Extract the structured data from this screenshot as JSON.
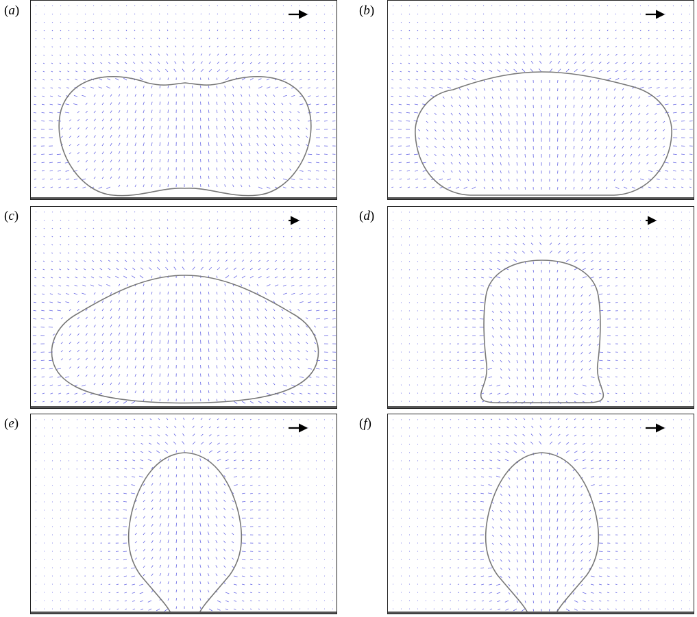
{
  "figure": {
    "panels": [
      {
        "id": "a",
        "label_open": "(",
        "label_letter": "a",
        "label_close": ")",
        "shape": "dumbbell",
        "reference_arrow": "long"
      },
      {
        "id": "b",
        "label_open": "(",
        "label_letter": "b",
        "label_close": ")",
        "shape": "pill",
        "reference_arrow": "long"
      },
      {
        "id": "c",
        "label_open": "(",
        "label_letter": "c",
        "label_close": ")",
        "shape": "flat-dome",
        "reference_arrow": "short"
      },
      {
        "id": "d",
        "label_open": "(",
        "label_letter": "d",
        "label_close": ")",
        "shape": "column",
        "reference_arrow": "short"
      },
      {
        "id": "e",
        "label_open": "(",
        "label_letter": "e",
        "label_close": ")",
        "shape": "pinching-drop",
        "reference_arrow": "long"
      },
      {
        "id": "f",
        "label_open": "(",
        "label_letter": "f",
        "label_close": ")",
        "shape": "pinching-drop",
        "reference_arrow": "long"
      }
    ],
    "colors": {
      "vector": "#4a4ae0",
      "interface": "#777777",
      "frame": "#222222",
      "wall": "#555555",
      "reference_arrow": "#000000"
    }
  }
}
